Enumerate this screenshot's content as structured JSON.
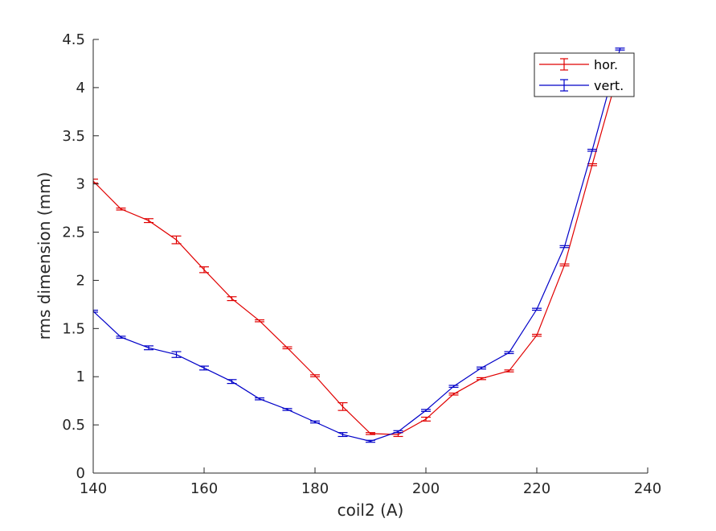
{
  "chart_data": {
    "type": "line",
    "title": "",
    "xlabel": "coil2 (A)",
    "ylabel": "rms dimension (mm)",
    "xlim": [
      140,
      240
    ],
    "ylim": [
      0,
      4.5
    ],
    "xticks": [
      "140",
      "160",
      "180",
      "200",
      "220",
      "240"
    ],
    "yticks": [
      "0",
      "0.5",
      "1",
      "1.5",
      "2",
      "2.5",
      "3",
      "3.5",
      "4",
      "4.5"
    ],
    "grid": false,
    "legend_position": "top-right",
    "error_bars": true,
    "x": [
      140,
      145,
      150,
      155,
      160,
      165,
      170,
      175,
      180,
      185,
      190,
      195,
      200,
      205,
      210,
      215,
      220,
      225,
      230,
      235
    ],
    "series": [
      {
        "name": "hor.",
        "color": "#e00000",
        "values": [
          3.03,
          2.74,
          2.62,
          2.42,
          2.11,
          1.81,
          1.58,
          1.3,
          1.01,
          0.69,
          0.41,
          0.4,
          0.56,
          0.82,
          0.98,
          1.06,
          1.43,
          2.16,
          3.2,
          4.22
        ],
        "errors": [
          0.02,
          0.01,
          0.02,
          0.04,
          0.03,
          0.02,
          0.01,
          0.01,
          0.01,
          0.04,
          0.01,
          0.02,
          0.02,
          0.01,
          0.01,
          0.01,
          0.01,
          0.01,
          0.01,
          0.01
        ]
      },
      {
        "name": "vert.",
        "color": "#0000c8",
        "values": [
          1.68,
          1.41,
          1.3,
          1.23,
          1.09,
          0.95,
          0.77,
          0.66,
          0.53,
          0.4,
          0.33,
          0.43,
          0.65,
          0.9,
          1.09,
          1.25,
          1.7,
          2.35,
          3.35,
          4.4
        ],
        "errors": [
          0.01,
          0.01,
          0.02,
          0.03,
          0.02,
          0.02,
          0.01,
          0.01,
          0.01,
          0.02,
          0.01,
          0.01,
          0.01,
          0.01,
          0.01,
          0.01,
          0.01,
          0.01,
          0.01,
          0.01
        ]
      }
    ]
  }
}
